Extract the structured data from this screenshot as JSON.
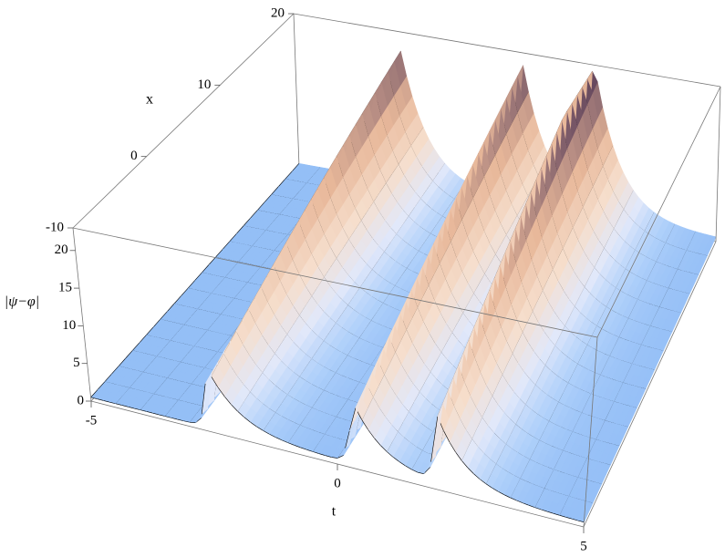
{
  "chart_data": {
    "type": "surface3d",
    "xlabel": "t",
    "ylabel": "x",
    "zlabel": "|ψ−φ|",
    "xlim": [
      -5,
      5
    ],
    "xticks": [
      -5,
      0,
      5
    ],
    "ylim": [
      -10,
      20
    ],
    "yticks": [
      -10,
      0,
      10,
      20
    ],
    "zlim": [
      0,
      23
    ],
    "zticks": [
      0,
      5,
      10,
      15,
      20
    ],
    "box": true
  }
}
